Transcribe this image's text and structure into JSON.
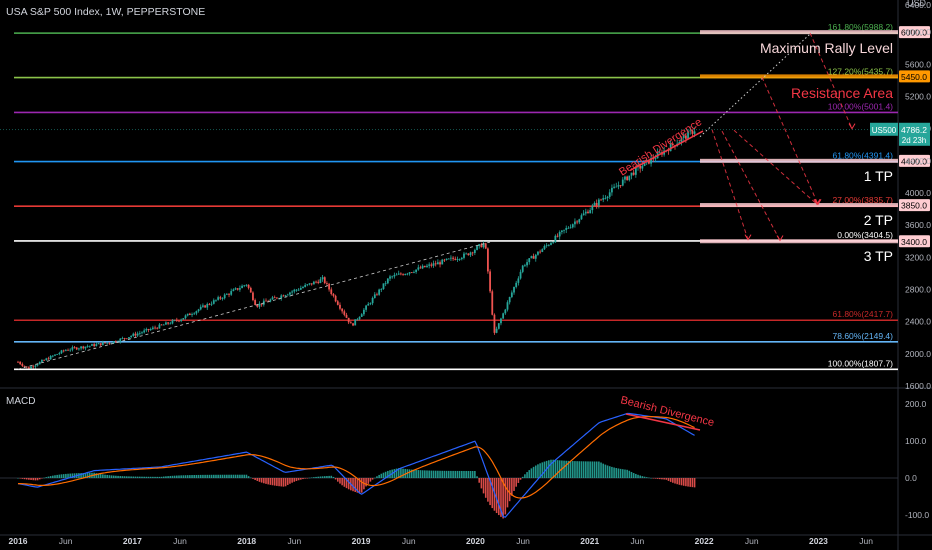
{
  "header": {
    "title": "USA S&P 500 Index, 1W, PEPPERSTONE"
  },
  "axis": {
    "currency": "USD",
    "price_ticks": [
      "6400.0",
      "6000.0",
      "5600.0",
      "5200.0",
      "4800.0",
      "4400.0",
      "4000.0",
      "3600.0",
      "3200.0",
      "2800.0",
      "2400.0",
      "2000.0",
      "1600.0"
    ],
    "time_ticks": [
      "2016",
      "Jun",
      "2017",
      "Jun",
      "2018",
      "Jun",
      "2019",
      "Jun",
      "2020",
      "Jun",
      "2021",
      "Jun",
      "2022",
      "Jun",
      "2023",
      "Jun"
    ],
    "macd_ticks": [
      "200.0",
      "100.0",
      "0.0",
      "-100.0"
    ]
  },
  "colors": {
    "bull": "#26a69a",
    "bear": "#ef5350",
    "macd": "#2962ff",
    "signal": "#ff6d00",
    "annot": "#f23645"
  },
  "price_label": {
    "symbol": "US500",
    "price": "4786.2",
    "countdown": "2d 23h"
  },
  "levels": [
    {
      "label": "161.80%(5988.2)",
      "tag": "6000.0",
      "color": "#4caf50"
    },
    {
      "label": "127.20%(5435.7)",
      "tag": "5450.0",
      "color": "#8bc34a"
    },
    {
      "label": "100.00%(5001.4)",
      "tag": "",
      "color": "#9c27b0"
    },
    {
      "label": "61.80%(4391.4)",
      "tag": "4400.0",
      "color": "#2196f3"
    },
    {
      "label": "27.00%(3835.7)",
      "tag": "3850.0",
      "color": "#e53935"
    },
    {
      "label": "0.00%(3404.5)",
      "tag": "3400.0",
      "color": "#ffffff"
    },
    {
      "label": "61.80%(2417.7)",
      "tag": "",
      "color": "#c62828"
    },
    {
      "label": "78.60%(2149.4)",
      "tag": "",
      "color": "#64b5f6"
    },
    {
      "label": "100.00%(1807.7)",
      "tag": "",
      "color": "#ffffff"
    }
  ],
  "annotations": {
    "max_rally": "Maximum Rally Level",
    "resistance": "Resistance Area",
    "tp1": "1 TP",
    "tp2": "2 TP",
    "tp3": "3 TP",
    "bearish_price": "Bearish Divergence",
    "bearish_macd": "Bearish Divergence"
  },
  "macd": {
    "label": "MACD"
  },
  "chart_data": {
    "type": "candlestick",
    "x_range": [
      "2016-01",
      "2023-09"
    ],
    "ylim": [
      1600,
      6400
    ],
    "price_keypoints": [
      {
        "date": "2016-01",
        "close": 1900
      },
      {
        "date": "2016-02",
        "close": 1820
      },
      {
        "date": "2016-06",
        "close": 2050
      },
      {
        "date": "2016-11",
        "close": 2150
      },
      {
        "date": "2017-06",
        "close": 2430
      },
      {
        "date": "2018-01",
        "close": 2870
      },
      {
        "date": "2018-02",
        "close": 2600
      },
      {
        "date": "2018-09",
        "close": 2930
      },
      {
        "date": "2018-12",
        "close": 2350
      },
      {
        "date": "2019-04",
        "close": 2950
      },
      {
        "date": "2019-12",
        "close": 3230
      },
      {
        "date": "2020-02",
        "close": 3380
      },
      {
        "date": "2020-03",
        "close": 2240
      },
      {
        "date": "2020-06",
        "close": 3100
      },
      {
        "date": "2020-11",
        "close": 3600
      },
      {
        "date": "2021-06",
        "close": 4300
      },
      {
        "date": "2021-11",
        "close": 4700
      },
      {
        "date": "2021-12",
        "close": 4786
      }
    ],
    "macd_range": [
      -120,
      220
    ],
    "macd_keypoints": [
      {
        "date": "2016-01",
        "macd": -15
      },
      {
        "date": "2016-03",
        "macd": -25
      },
      {
        "date": "2016-09",
        "macd": 20
      },
      {
        "date": "2017-04",
        "macd": 30
      },
      {
        "date": "2018-01",
        "macd": 70
      },
      {
        "date": "2018-05",
        "macd": 15
      },
      {
        "date": "2018-10",
        "macd": 35
      },
      {
        "date": "2019-01",
        "macd": -45
      },
      {
        "date": "2019-05",
        "macd": 25
      },
      {
        "date": "2020-01",
        "macd": 100
      },
      {
        "date": "2020-04",
        "macd": -110
      },
      {
        "date": "2020-09",
        "macd": 40
      },
      {
        "date": "2021-02",
        "macd": 150
      },
      {
        "date": "2021-05",
        "macd": 175
      },
      {
        "date": "2021-09",
        "macd": 160
      },
      {
        "date": "2021-12",
        "macd": 115
      }
    ]
  }
}
